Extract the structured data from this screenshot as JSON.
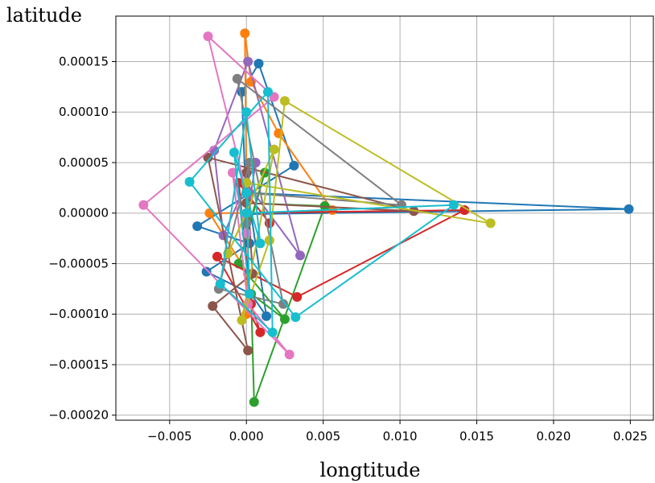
{
  "chart_data": {
    "type": "scatter",
    "title": "",
    "xlabel": "longtitude",
    "ylabel": "latitude",
    "xlim": [
      -0.0085,
      0.0265
    ],
    "ylim": [
      -0.000205,
      0.000195
    ],
    "grid": true,
    "legend": "none",
    "x_ticks": [
      -0.005,
      0.0,
      0.005,
      0.01,
      0.015,
      0.02,
      0.025
    ],
    "x_tick_labels": [
      "−0.005",
      "0.000",
      "0.005",
      "0.010",
      "0.015",
      "0.020",
      "0.025"
    ],
    "y_ticks": [
      0.00015,
      0.0001,
      5e-05,
      0.0,
      -5e-05,
      -0.0001,
      -0.00015,
      -0.0002
    ],
    "y_tick_labels": [
      "0.00015",
      "0.00010",
      "0.00005",
      "0.00000",
      "−0.00005",
      "−0.00010",
      "−0.00015",
      "−0.00020"
    ],
    "series": [
      {
        "color": "#1f77b4",
        "points": [
          [
            0.0,
            2e-05
          ],
          [
            0.0249,
            4e-06
          ],
          [
            0.0,
            -1e-06
          ],
          [
            -0.0003,
            0.00012
          ],
          [
            0.0008,
            0.000148
          ],
          [
            0.0031,
            4.7e-05
          ],
          [
            -0.0032,
            -1.3e-05
          ],
          [
            0.0002,
            -3e-05
          ],
          [
            -0.0026,
            -5.8e-05
          ],
          [
            0.0003,
            -8e-05
          ],
          [
            0.0013,
            -0.000102
          ],
          [
            0.0,
            3e-05
          ]
        ]
      },
      {
        "color": "#ff7f0e",
        "points": [
          [
            0.0,
            4e-05
          ],
          [
            -0.0001,
            0.000178
          ],
          [
            0.0003,
            0.00013
          ],
          [
            0.0021,
            7.9e-05
          ],
          [
            0.0056,
            3e-06
          ],
          [
            0.0,
            0.0
          ],
          [
            -0.0024,
            0.0
          ],
          [
            0.0001,
            -6e-05
          ],
          [
            0.0,
            -0.0001
          ],
          [
            0.0002,
            2e-05
          ]
        ]
      },
      {
        "color": "#2ca02c",
        "points": [
          [
            0.0,
            1e-05
          ],
          [
            0.0051,
            7e-06
          ],
          [
            0.0005,
            -0.000187
          ],
          [
            0.0003,
            -8e-05
          ],
          [
            0.0025,
            -0.000105
          ],
          [
            -0.0005,
            -5e-05
          ],
          [
            0.0012,
            4e-05
          ],
          [
            0.0,
            -2e-05
          ]
        ]
      },
      {
        "color": "#d62728",
        "points": [
          [
            0.0,
            0.0
          ],
          [
            0.0142,
            3e-06
          ],
          [
            0.0033,
            -8.3e-05
          ],
          [
            -0.0019,
            -4.3e-05
          ],
          [
            0.0009,
            -0.000118
          ],
          [
            0.0003,
            -9e-05
          ],
          [
            -0.0005,
            3e-05
          ],
          [
            0.0015,
            -1e-05
          ]
        ]
      },
      {
        "color": "#9467bd",
        "points": [
          [
            0.0,
            3e-05
          ],
          [
            0.0035,
            -4.2e-05
          ],
          [
            0.0001,
            0.00015
          ],
          [
            -0.0021,
            6.2e-05
          ],
          [
            -0.0015,
            -2.2e-05
          ],
          [
            0.0006,
            5e-05
          ],
          [
            0.0,
            -1e-05
          ]
        ]
      },
      {
        "color": "#8c564b",
        "points": [
          [
            0.0,
            1e-05
          ],
          [
            0.0109,
            2e-06
          ],
          [
            -0.0025,
            5.5e-05
          ],
          [
            0.0001,
            -0.000136
          ],
          [
            -0.0022,
            -9.2e-05
          ],
          [
            0.0004,
            -6e-05
          ],
          [
            0.0,
            4e-05
          ]
        ]
      },
      {
        "color": "#e377c2",
        "points": [
          [
            0.0,
            2e-05
          ],
          [
            -0.0025,
            0.000175
          ],
          [
            0.0018,
            0.000115
          ],
          [
            -0.0067,
            8e-06
          ],
          [
            0.0028,
            -0.00014
          ],
          [
            0.0001,
            -9e-05
          ],
          [
            -0.0009,
            4e-05
          ],
          [
            0.0,
            -2e-05
          ]
        ]
      },
      {
        "color": "#7f7f7f",
        "points": [
          [
            0.0,
            2e-05
          ],
          [
            0.0101,
            8e-06
          ],
          [
            -0.0006,
            0.000133
          ],
          [
            0.0024,
            -9e-05
          ],
          [
            -0.0018,
            -7.5e-05
          ],
          [
            0.0002,
            5e-05
          ],
          [
            0.0,
            -1e-05
          ]
        ]
      },
      {
        "color": "#bcbd22",
        "points": [
          [
            0.0,
            3e-05
          ],
          [
            0.0159,
            -1e-05
          ],
          [
            0.0025,
            0.000111
          ],
          [
            0.0015,
            -2.7e-05
          ],
          [
            -0.0003,
            -0.000106
          ],
          [
            0.0018,
            6.3e-05
          ],
          [
            -0.0012,
            -4e-05
          ],
          [
            0.0,
            0.0
          ]
        ]
      },
      {
        "color": "#17becf",
        "points": [
          [
            0.0,
            0.0
          ],
          [
            0.0135,
            8e-06
          ],
          [
            0.0032,
            -0.000103
          ],
          [
            -0.0037,
            3.1e-05
          ],
          [
            0.0014,
            0.00012
          ],
          [
            0.0017,
            -0.000118
          ],
          [
            -0.0017,
            -7e-05
          ],
          [
            0.0,
            0.0001
          ],
          [
            0.0009,
            -3e-05
          ],
          [
            -0.0008,
            6e-05
          ],
          [
            0.0002,
            -8e-05
          ],
          [
            0.0,
            2e-05
          ]
        ]
      }
    ]
  }
}
